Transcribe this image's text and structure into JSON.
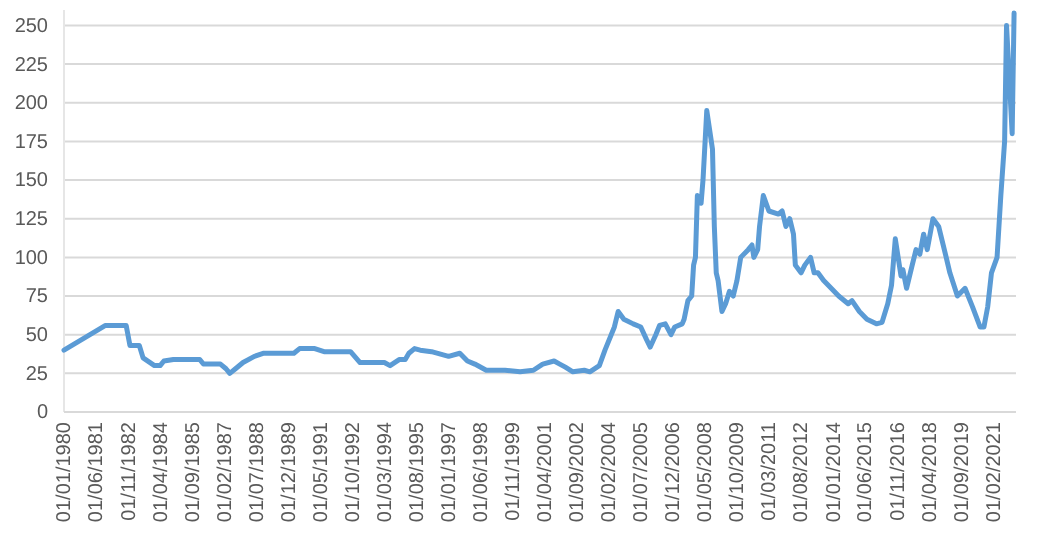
{
  "chart_data": {
    "type": "line",
    "grid": "y",
    "line_style": "solid",
    "marker": "none",
    "x": [
      "1980-01",
      "1981-11",
      "1982-10",
      "1982-12",
      "1983-05",
      "1983-07",
      "1984-01",
      "1984-04",
      "1984-06",
      "1984-11",
      "1986-01",
      "1986-03",
      "1986-12",
      "1987-03",
      "1987-05",
      "1987-08",
      "1987-12",
      "1988-06",
      "1988-11",
      "1990-03",
      "1990-06",
      "1991-02",
      "1991-07",
      "1992-09",
      "1993-02",
      "1994-03",
      "1994-06",
      "1994-11",
      "1995-02",
      "1995-04",
      "1995-07",
      "1995-10",
      "1996-04",
      "1997-01",
      "1997-07",
      "1997-11",
      "1998-03",
      "1998-09",
      "1999-07",
      "2000-03",
      "2000-10",
      "2001-03",
      "2001-09",
      "2001-12",
      "2002-03",
      "2002-07",
      "2003-01",
      "2003-04",
      "2003-09",
      "2003-12",
      "2004-05",
      "2004-07",
      "2004-10",
      "2005-03",
      "2005-07",
      "2005-10",
      "2005-12",
      "2006-03",
      "2006-05",
      "2006-08",
      "2006-11",
      "2007-01",
      "2007-05",
      "2007-06",
      "2007-08",
      "2007-10",
      "2007-11",
      "2007-12",
      "2008-01",
      "2008-03",
      "2008-04",
      "2008-06",
      "2008-09",
      "2008-10",
      "2008-11",
      "2008-12",
      "2009-02",
      "2009-04",
      "2009-06",
      "2009-08",
      "2009-10",
      "2009-12",
      "2010-04",
      "2010-06",
      "2010-07",
      "2010-09",
      "2010-10",
      "2010-12",
      "2011-03",
      "2011-08",
      "2011-10",
      "2011-12",
      "2012-02",
      "2012-04",
      "2012-05",
      "2012-08",
      "2012-10",
      "2013-01",
      "2013-03",
      "2013-05",
      "2013-08",
      "2013-12",
      "2014-04",
      "2014-09",
      "2014-11",
      "2015-03",
      "2015-07",
      "2015-12",
      "2016-03",
      "2016-06",
      "2016-08",
      "2016-10",
      "2017-01",
      "2017-02",
      "2017-04",
      "2017-07",
      "2017-09",
      "2017-11",
      "2018-01",
      "2018-03",
      "2018-06",
      "2018-09",
      "2019-01",
      "2019-03",
      "2019-07",
      "2019-11",
      "2020-03",
      "2020-07",
      "2020-09",
      "2020-11",
      "2021-01",
      "2021-04",
      "2021-06",
      "2021-08",
      "2021-09",
      "2021-12",
      "2022-01"
    ],
    "series": [
      {
        "color": "#5b9bd5",
        "values": [
          40,
          56,
          56,
          43,
          43,
          35,
          30,
          30,
          33,
          34,
          34,
          31,
          31,
          28,
          25,
          28,
          32,
          36,
          38,
          38,
          41,
          41,
          39,
          39,
          32,
          32,
          30,
          34,
          34,
          38,
          41,
          40,
          39,
          36,
          38,
          33,
          31,
          27,
          27,
          26,
          27,
          31,
          33,
          31,
          29,
          26,
          27,
          26,
          30,
          40,
          55,
          65,
          60,
          57,
          55,
          47,
          42,
          50,
          56,
          57,
          50,
          55,
          57,
          60,
          72,
          75,
          95,
          100,
          140,
          135,
          150,
          195,
          170,
          120,
          90,
          85,
          65,
          70,
          78,
          75,
          85,
          100,
          105,
          108,
          100,
          105,
          120,
          140,
          130,
          128,
          130,
          120,
          125,
          115,
          95,
          90,
          95,
          100,
          90,
          90,
          85,
          80,
          75,
          70,
          72,
          65,
          60,
          57,
          58,
          70,
          82,
          112,
          88,
          92,
          80,
          95,
          105,
          102,
          115,
          105,
          125,
          120,
          100,
          90,
          75,
          80,
          68,
          55,
          55,
          68,
          90,
          100,
          140,
          175,
          250,
          180,
          258
        ]
      }
    ],
    "xlim": [
      "1980-01",
      "2022-02"
    ],
    "xticks": [
      {
        "value": "1980-01-01",
        "label": "01/01/1980"
      },
      {
        "value": "1981-06-01",
        "label": "01/06/1981"
      },
      {
        "value": "1982-11-01",
        "label": "01/11/1982"
      },
      {
        "value": "1984-04-01",
        "label": "01/04/1984"
      },
      {
        "value": "1985-09-01",
        "label": "01/09/1985"
      },
      {
        "value": "1987-02-01",
        "label": "01/02/1987"
      },
      {
        "value": "1988-07-01",
        "label": "01/07/1988"
      },
      {
        "value": "1989-12-01",
        "label": "01/12/1989"
      },
      {
        "value": "1991-05-01",
        "label": "01/05/1991"
      },
      {
        "value": "1992-10-01",
        "label": "01/10/1992"
      },
      {
        "value": "1994-03-01",
        "label": "01/03/1994"
      },
      {
        "value": "1995-08-01",
        "label": "01/08/1995"
      },
      {
        "value": "1997-01-01",
        "label": "01/01/1997"
      },
      {
        "value": "1998-06-01",
        "label": "01/06/1998"
      },
      {
        "value": "1999-11-01",
        "label": "01/11/1999"
      },
      {
        "value": "2001-04-01",
        "label": "01/04/2001"
      },
      {
        "value": "2002-09-01",
        "label": "01/09/2002"
      },
      {
        "value": "2004-02-01",
        "label": "01/02/2004"
      },
      {
        "value": "2005-07-01",
        "label": "01/07/2005"
      },
      {
        "value": "2006-12-01",
        "label": "01/12/2006"
      },
      {
        "value": "2008-05-01",
        "label": "01/05/2008"
      },
      {
        "value": "2009-10-01",
        "label": "01/10/2009"
      },
      {
        "value": "2011-03-01",
        "label": "01/03/2011"
      },
      {
        "value": "2012-08-01",
        "label": "01/08/2012"
      },
      {
        "value": "2014-01-01",
        "label": "01/01/2014"
      },
      {
        "value": "2015-06-01",
        "label": "01/06/2015"
      },
      {
        "value": "2016-11-01",
        "label": "01/11/2016"
      },
      {
        "value": "2018-04-01",
        "label": "01/04/2018"
      },
      {
        "value": "2019-09-01",
        "label": "01/09/2019"
      },
      {
        "value": "2021-02-01",
        "label": "01/02/2021"
      }
    ],
    "ylim": [
      0,
      260
    ],
    "yticks": [
      0,
      25,
      50,
      75,
      100,
      125,
      150,
      175,
      200,
      225,
      250
    ]
  }
}
